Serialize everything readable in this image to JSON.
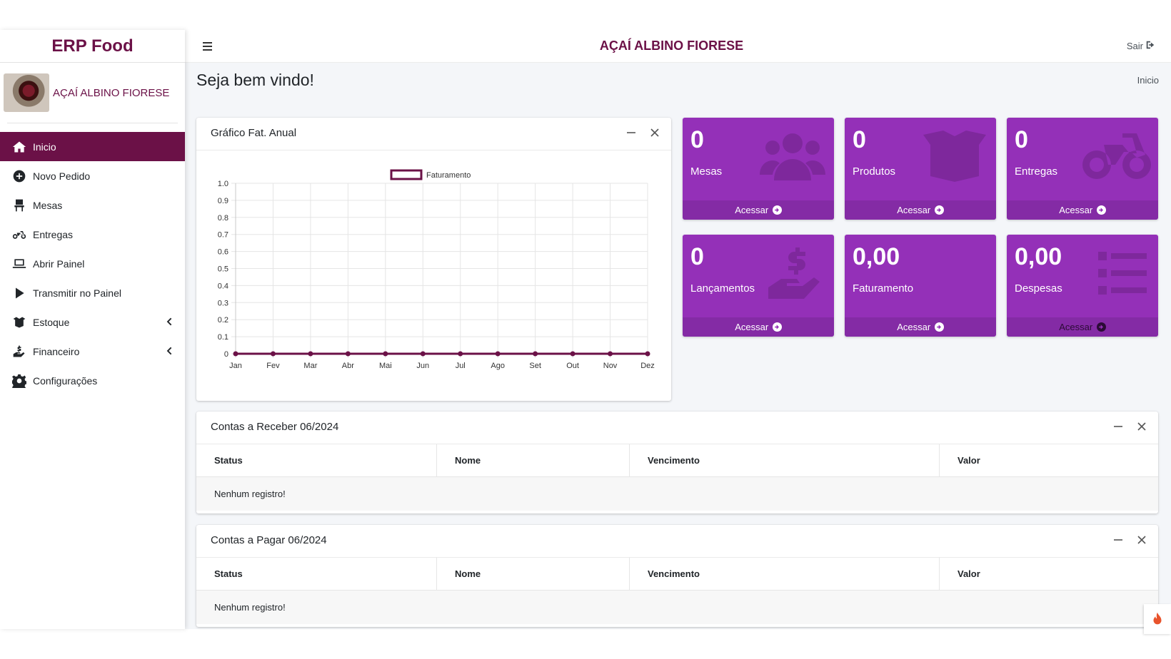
{
  "sidebar": {
    "brand": "ERP Food",
    "user_name": "AÇAÍ ALBINO FIORESE",
    "items": [
      {
        "label": "Inicio",
        "icon": "home-icon"
      },
      {
        "label": "Novo Pedido",
        "icon": "plus-circle-icon"
      },
      {
        "label": "Mesas",
        "icon": "chair-icon"
      },
      {
        "label": "Entregas",
        "icon": "motorcycle-icon"
      },
      {
        "label": "Abrir Painel",
        "icon": "laptop-icon"
      },
      {
        "label": "Transmitir no Painel",
        "icon": "play-icon"
      },
      {
        "label": "Estoque",
        "icon": "box-open-icon"
      },
      {
        "label": "Financeiro",
        "icon": "hand-dollar-icon"
      },
      {
        "label": "Configurações",
        "icon": "gear-icon"
      }
    ]
  },
  "header": {
    "title": "AÇAÍ ALBINO FIORESE",
    "logout_label": "Sair"
  },
  "page": {
    "title": "Seja bem vindo!",
    "breadcrumb": "Inicio"
  },
  "chart_card": {
    "title": "Gráfico Fat. Anual"
  },
  "chart_data": {
    "type": "line",
    "title": "",
    "xlabel": "",
    "ylabel": "",
    "categories": [
      "Jan",
      "Fev",
      "Mar",
      "Abr",
      "Mai",
      "Jun",
      "Jul",
      "Ago",
      "Set",
      "Out",
      "Nov",
      "Dez"
    ],
    "series": [
      {
        "name": "Faturamento",
        "values": [
          0,
          0,
          0,
          0,
          0,
          0,
          0,
          0,
          0,
          0,
          0,
          0
        ],
        "color": "#6b1147"
      }
    ],
    "y_ticks": [
      "1.0",
      "0.9",
      "0.8",
      "0.7",
      "0.6",
      "0.5",
      "0.4",
      "0.3",
      "0.2",
      "0.1",
      "0"
    ],
    "ylim": [
      0,
      1
    ],
    "grid": true,
    "legend": "top-center"
  },
  "boxes": [
    {
      "value": "0",
      "label": "Mesas",
      "link": "Acessar",
      "icon": "users-icon"
    },
    {
      "value": "0",
      "label": "Produtos",
      "link": "Acessar",
      "icon": "box-icon"
    },
    {
      "value": "0",
      "label": "Entregas",
      "link": "Acessar",
      "icon": "motorcycle-icon"
    },
    {
      "value": "0",
      "label": "Lançamentos",
      "link": "Acessar",
      "icon": "hand-dollar-icon"
    },
    {
      "value": "0,00",
      "label": "Faturamento",
      "link": "Acessar",
      "icon": ""
    },
    {
      "value": "0,00",
      "label": "Despesas",
      "link": "Acessar",
      "icon": "list-icon"
    }
  ],
  "receivables": {
    "title": "Contas a Receber 06/2024",
    "columns": [
      "Status",
      "Nome",
      "Vencimento",
      "Valor"
    ],
    "empty": "Nenhum registro!"
  },
  "payables": {
    "title": "Contas a Pagar 06/2024",
    "columns": [
      "Status",
      "Nome",
      "Vencimento",
      "Valor"
    ],
    "empty": "Nenhum registro!"
  },
  "colors": {
    "brand": "#6b1147",
    "box": "#9430b8",
    "background": "#f4f6f9"
  }
}
